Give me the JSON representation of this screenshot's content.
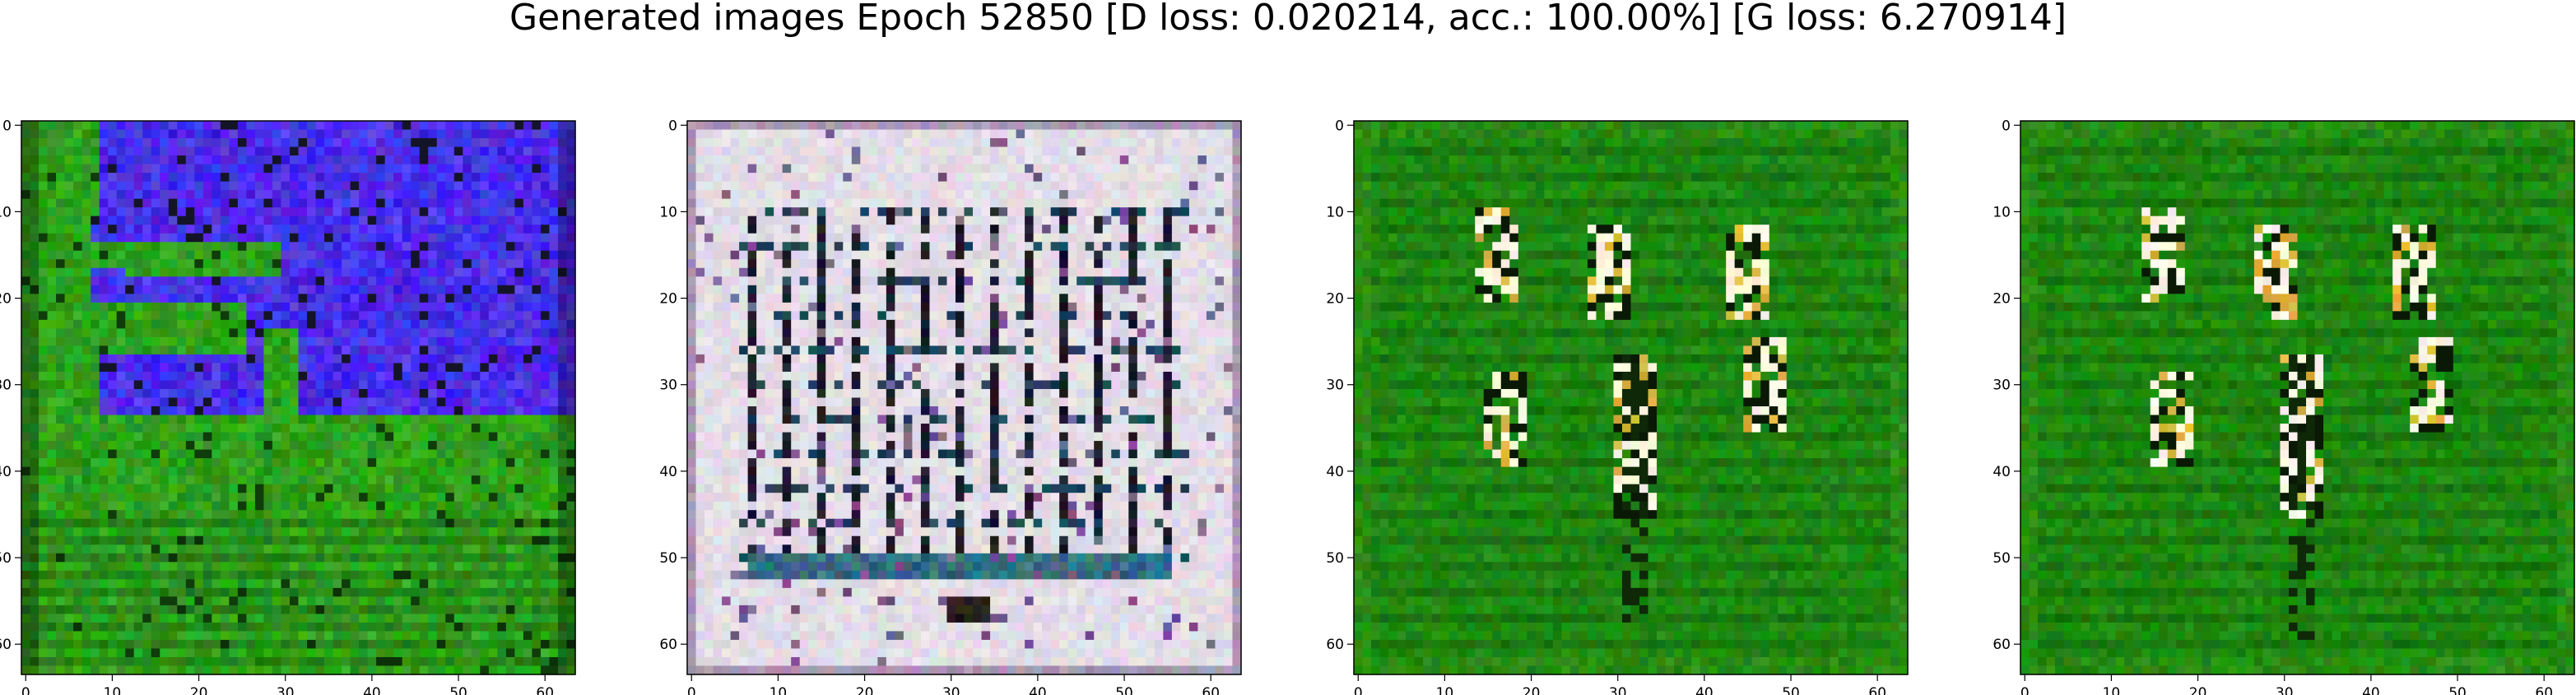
{
  "figure": {
    "title": "Generated images Epoch 52850 [D loss: 0.020214, acc.: 100.00%] [G loss: 6.270914]"
  },
  "panels": [
    {
      "theme": "green-blue",
      "base_color": "#2fa11c",
      "accent_color": "#4a2fea",
      "x_ticks": [
        "0",
        "10",
        "20",
        "30",
        "40",
        "50",
        "60"
      ],
      "y_ticks": [
        "0",
        "10",
        "20",
        "30",
        "40",
        "50",
        "60"
      ]
    },
    {
      "theme": "light-grid",
      "base_color": "#e3dde6",
      "accent_color": "#1b1b2a",
      "x_ticks": [
        "0",
        "10",
        "20",
        "30",
        "40",
        "50",
        "60"
      ],
      "y_ticks": [
        "0",
        "10",
        "20",
        "30",
        "40",
        "50",
        "60"
      ]
    },
    {
      "theme": "green-strokes",
      "base_color": "#1f8a12",
      "accent_color": "#fff7e0",
      "x_ticks": [
        "0",
        "10",
        "20",
        "30",
        "40",
        "50",
        "60"
      ],
      "y_ticks": [
        "0",
        "10",
        "20",
        "30",
        "40",
        "50",
        "60"
      ]
    },
    {
      "theme": "green-strokes",
      "base_color": "#1e8a10",
      "accent_color": "#fff8e6",
      "x_ticks": [
        "0",
        "10",
        "20",
        "30",
        "40",
        "50",
        "60"
      ],
      "y_ticks": [
        "0",
        "10",
        "20",
        "30",
        "40",
        "50",
        "60"
      ]
    }
  ]
}
